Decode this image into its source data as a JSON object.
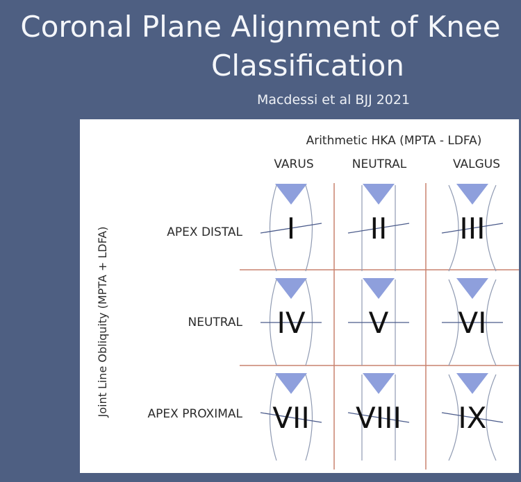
{
  "title_line1": "Coronal Plane Alignment of Knee",
  "title_line2": "Classification",
  "subtitle": "Macdessi et al  BJJ 2021",
  "x_axis_title": "Arithmetic HKA (MPTA - LDFA)",
  "y_axis_title": "Joint Line Obliquity (MPTA + LDFA)",
  "columns": [
    "VARUS",
    "NEUTRAL",
    "VALGUS"
  ],
  "rows": [
    "APEX DISTAL",
    "NEUTRAL",
    "APEX PROXIMAL"
  ],
  "cells": [
    [
      "I",
      "II",
      "III"
    ],
    [
      "IV",
      "V",
      "VI"
    ],
    [
      "VII",
      "VIII",
      "IX"
    ]
  ],
  "colors": {
    "background": "#4e5f82",
    "grid": "#c9826e",
    "triangle": "#8e9fdc",
    "limb_outline": "#8f9ab2",
    "joint_line": "#4a5a8a"
  }
}
